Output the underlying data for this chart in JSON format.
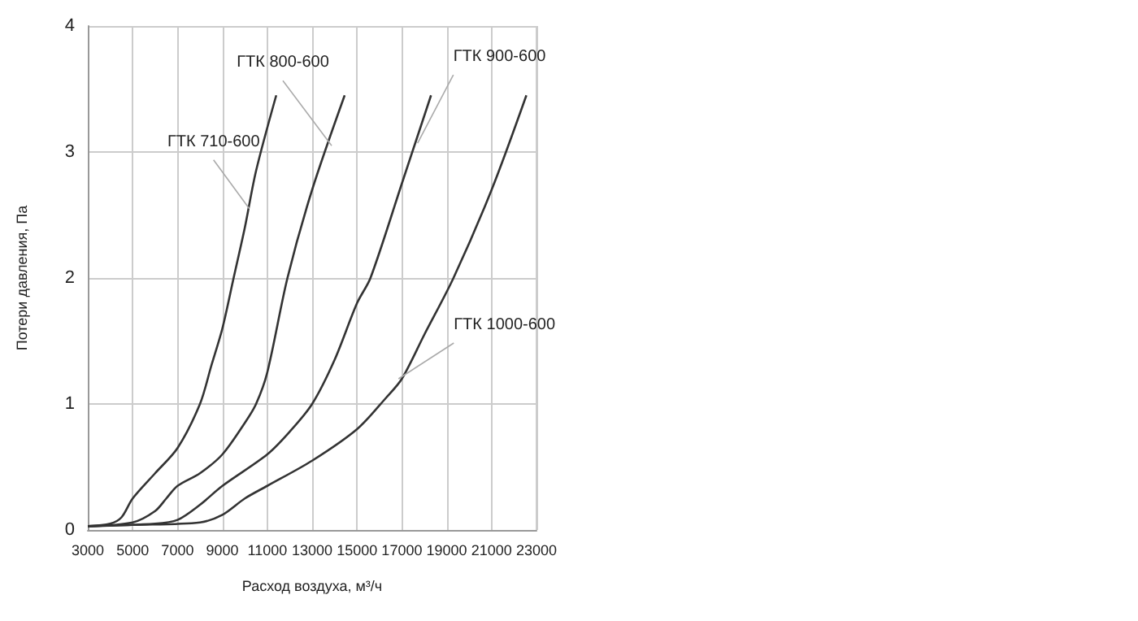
{
  "chart_data": {
    "type": "line",
    "xlabel": "Расход воздуха, м³/ч",
    "ylabel": "Потери давления, Па",
    "xlim": [
      3000,
      23000
    ],
    "xticks": [
      3000,
      5000,
      7000,
      9000,
      11000,
      13000,
      15000,
      17000,
      19000,
      21000,
      23000
    ],
    "ylim": [
      0,
      4
    ],
    "yticks": [
      0,
      1,
      2,
      3,
      4
    ],
    "grid": true,
    "marker": "none",
    "line_style": "solid",
    "series": [
      {
        "color": "#333333",
        "x": [
          3000,
          4000,
          4500,
          5000,
          6000,
          7000,
          8000,
          8500,
          9000,
          9500,
          10000,
          10500,
          11400
        ],
        "values": [
          0.03,
          0.05,
          0.1,
          0.25,
          0.45,
          0.65,
          1.0,
          1.3,
          1.6,
          2.0,
          2.4,
          2.85,
          3.45
        ]
      },
      {
        "color": "#333333",
        "x": [
          3000,
          5000,
          6000,
          6500,
          7000,
          8000,
          9000,
          10000,
          10500,
          11000,
          11900,
          13000,
          14450
        ],
        "values": [
          0.03,
          0.06,
          0.15,
          0.25,
          0.35,
          0.45,
          0.6,
          0.85,
          1.0,
          1.25,
          2.0,
          2.7,
          3.45
        ]
      },
      {
        "color": "#333333",
        "x": [
          3000,
          6000,
          7000,
          8000,
          9000,
          11000,
          12000,
          13000,
          14000,
          15000,
          15600,
          17000,
          18300
        ],
        "values": [
          0.03,
          0.05,
          0.08,
          0.2,
          0.35,
          0.6,
          0.78,
          1.0,
          1.35,
          1.8,
          2.0,
          2.75,
          3.45
        ]
      },
      {
        "color": "#333333",
        "x": [
          3000,
          5000,
          8000,
          9000,
          10000,
          11000,
          13000,
          15000,
          16300,
          17000,
          18000,
          19300,
          21000,
          22550
        ],
        "values": [
          0.03,
          0.04,
          0.06,
          0.12,
          0.25,
          0.35,
          0.55,
          0.8,
          1.05,
          1.2,
          1.55,
          2.0,
          2.7,
          3.45
        ]
      }
    ],
    "annotations": [
      {
        "text": "ГТК 710-600",
        "x": 10200,
        "y": 2.55
      },
      {
        "text": "ГТК 800-600",
        "x": 13870,
        "y": 3.05
      },
      {
        "text": "ГТК 900-600",
        "x": 17700,
        "y": 3.07
      },
      {
        "text": "ГТК 1000-600",
        "x": 16850,
        "y": 1.2
      }
    ]
  }
}
